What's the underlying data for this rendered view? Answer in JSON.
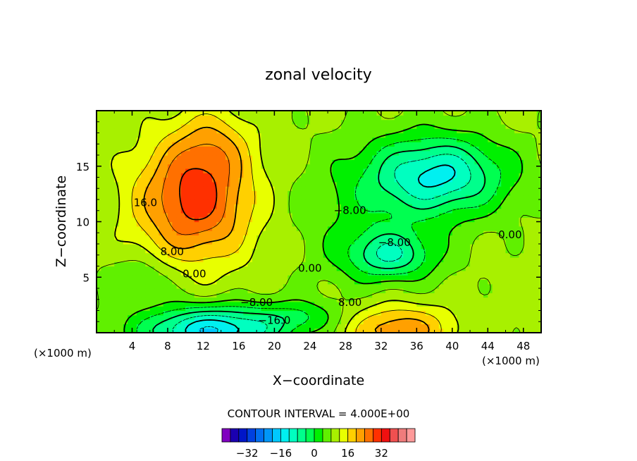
{
  "chart_data": {
    "type": "contour",
    "title": "zonal velocity",
    "xlabel": "X−coordinate",
    "ylabel": "Z−coordinate",
    "x_unit_left": "(×1000 m)",
    "x_unit_right": "(×1000 m)",
    "xlim": [
      0,
      50
    ],
    "ylim": [
      0,
      20
    ],
    "x_ticks": [
      "4",
      "8",
      "12",
      "16",
      "20",
      "24",
      "28",
      "32",
      "36",
      "40",
      "44",
      "48"
    ],
    "y_ticks": [
      "5",
      "10",
      "15"
    ],
    "contour_interval_label": "CONTOUR INTERVAL = 4.000E+00",
    "contour_labels": [
      {
        "text": "16.0",
        "x": 5.5,
        "z": 11.4
      },
      {
        "text": "8.00",
        "x": 8.5,
        "z": 7.0
      },
      {
        "text": "0.00",
        "x": 11.0,
        "z": 5.0
      },
      {
        "text": "0.00",
        "x": 24.0,
        "z": 5.5
      },
      {
        "text": "−8.00",
        "x": 28.5,
        "z": 10.7
      },
      {
        "text": "−8.00",
        "x": 33.5,
        "z": 7.8
      },
      {
        "text": "0.00",
        "x": 46.5,
        "z": 8.5
      },
      {
        "text": "8.00",
        "x": 28.5,
        "z": 2.4
      },
      {
        "text": "−8.00",
        "x": 18.0,
        "z": 2.4
      },
      {
        "text": "−16.0",
        "x": 20.0,
        "z": 0.8
      }
    ],
    "levels": [
      -36,
      -32,
      -28,
      -24,
      -20,
      -16,
      -12,
      -8,
      -4,
      0,
      4,
      8,
      12,
      16,
      20,
      24,
      28,
      32,
      36
    ],
    "colorbar": {
      "tick_labels": [
        "−32",
        "−16",
        "0",
        "16",
        "32"
      ],
      "tick_values": [
        -32,
        -16,
        0,
        16,
        32
      ],
      "colors": [
        "#8000c0",
        "#1a00b0",
        "#0016c8",
        "#0040e0",
        "#006ef0",
        "#0096f8",
        "#00c8ff",
        "#00f0f0",
        "#00ffc0",
        "#00ff8c",
        "#00ff50",
        "#00f000",
        "#60f000",
        "#a8f000",
        "#e8ff00",
        "#ffd000",
        "#ffa000",
        "#ff7000",
        "#ff3000",
        "#f01010",
        "#f05050",
        "#f07c7c",
        "#ff9a9a"
      ]
    },
    "features": [
      {
        "name": "upper-left jet",
        "x": 11.0,
        "z": 12.0,
        "value": 26
      },
      {
        "name": "lower-right jet",
        "x": 34.0,
        "z": 1.0,
        "value": 18
      },
      {
        "name": "upper-right return flow",
        "x": 38.5,
        "z": 14.0,
        "value": -16
      },
      {
        "name": "mid return flow",
        "x": 33.0,
        "z": 7.0,
        "value": -12
      },
      {
        "name": "bottom-left return flow",
        "x": 13.0,
        "z": 0.5,
        "value": -20
      }
    ]
  }
}
